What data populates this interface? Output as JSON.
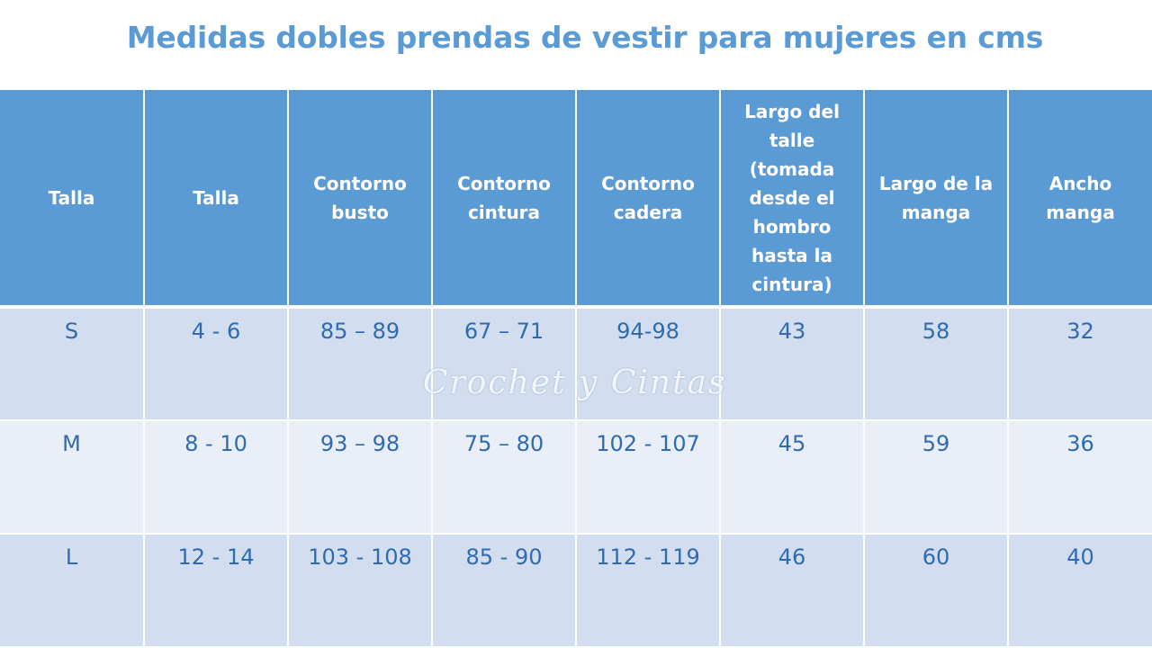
{
  "title": "Medidas dobles prendas de vestir para mujeres en cms",
  "watermark": "Crochet y Cintas",
  "colors": {
    "title": "#5b9bd5",
    "header_bg": "#5b9bd5",
    "header_text": "#ffffff",
    "row_odd_bg": "#d2ddef",
    "row_even_bg": "#e9eef7",
    "cell_text": "#2e6bb0"
  },
  "table": {
    "headers": [
      "Talla",
      "Talla",
      "Contorno busto",
      "Contorno cintura",
      "Contorno cadera",
      "Largo del talle (tomada desde el hombro hasta la cintura)",
      "Largo de la manga",
      "Ancho manga"
    ],
    "rows": [
      [
        "S",
        "4 - 6",
        "85 – 89",
        "67 – 71",
        "94-98",
        "43",
        "58",
        "32"
      ],
      [
        "M",
        "8 - 10",
        "93 – 98",
        "75 – 80",
        "102 - 107",
        "45",
        "59",
        "36"
      ],
      [
        "L",
        "12 - 14",
        "103 - 108",
        "85 - 90",
        "112 - 119",
        "46",
        "60",
        "40"
      ]
    ]
  }
}
